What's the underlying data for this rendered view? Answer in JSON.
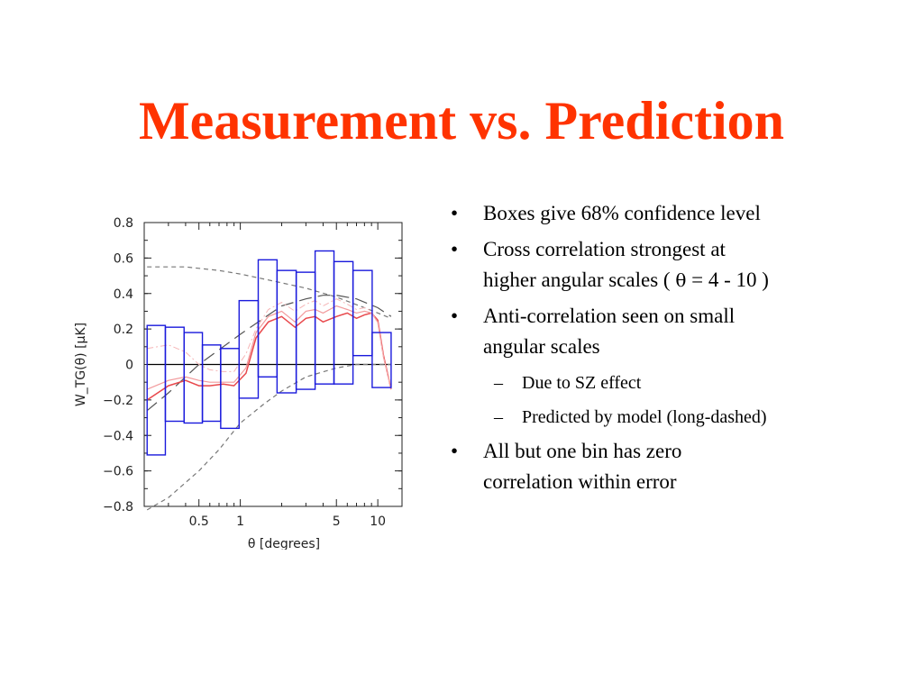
{
  "slide": {
    "title": "Measurement vs. Prediction",
    "title_color": "#ff3300"
  },
  "bullets": [
    {
      "text": "Boxes give 68% confidence level"
    },
    {
      "line1": "Cross correlation strongest at",
      "line2_pre": "higher angular scales ( ",
      "symbol": "θ",
      "line2_post": " = 4 - 10 )"
    },
    {
      "line1": "Anti-correlation seen on small",
      "line2": "angular scales",
      "subs": [
        "Due to SZ effect",
        "Predicted by model (long-dashed)"
      ]
    },
    {
      "line1": "All but one bin has zero",
      "line2": "correlation within error"
    }
  ],
  "chart_data": {
    "type": "box",
    "xlabel": "θ [degrees]",
    "ylabel": "W_TG(θ) [μK]",
    "x_scale": "log",
    "xlim": [
      0.2,
      15
    ],
    "ylim": [
      -0.8,
      0.8
    ],
    "xticks": [
      0.5,
      1,
      5,
      10
    ],
    "yticks": [
      0.8,
      0.6,
      0.4,
      0.2,
      0,
      -0.2,
      -0.4,
      -0.6,
      -0.8
    ],
    "ytick_labels": [
      "0.8",
      "0.6",
      "0.4",
      "0.2",
      "0",
      "−0.2",
      "−0.4",
      "−0.6",
      "−0.8"
    ],
    "box_color": "#1a1adc",
    "boxes": [
      {
        "x0": 0.21,
        "x1": 0.285,
        "low": -0.51,
        "high": 0.22
      },
      {
        "x0": 0.285,
        "x1": 0.39,
        "low": -0.32,
        "high": 0.21
      },
      {
        "x0": 0.39,
        "x1": 0.53,
        "low": -0.33,
        "high": 0.18
      },
      {
        "x0": 0.53,
        "x1": 0.72,
        "low": -0.32,
        "high": 0.11
      },
      {
        "x0": 0.72,
        "x1": 0.98,
        "low": -0.36,
        "high": 0.09
      },
      {
        "x0": 0.98,
        "x1": 1.35,
        "low": -0.19,
        "high": 0.36
      },
      {
        "x0": 1.35,
        "x1": 1.85,
        "low": -0.07,
        "high": 0.59
      },
      {
        "x0": 1.85,
        "x1": 2.55,
        "low": -0.16,
        "high": 0.53
      },
      {
        "x0": 2.55,
        "x1": 3.5,
        "low": -0.14,
        "high": 0.52
      },
      {
        "x0": 3.5,
        "x1": 4.8,
        "low": -0.11,
        "high": 0.64
      },
      {
        "x0": 4.8,
        "x1": 6.6,
        "low": -0.11,
        "high": 0.58
      },
      {
        "x0": 6.6,
        "x1": 9.1,
        "low": 0.05,
        "high": 0.53
      },
      {
        "x0": 9.1,
        "x1": 12.5,
        "low": -0.13,
        "high": 0.18
      }
    ],
    "curves": [
      {
        "style": "long-dashed",
        "color": "#555555",
        "x": [
          0.21,
          0.3,
          0.5,
          1,
          2,
          3,
          4,
          5,
          7,
          10,
          12.5
        ],
        "y": [
          -0.26,
          -0.16,
          0.0,
          0.17,
          0.33,
          0.37,
          0.39,
          0.39,
          0.37,
          0.32,
          0.27
        ]
      },
      {
        "style": "short-dashed",
        "color": "#777777",
        "x": [
          0.21,
          0.4,
          0.7,
          1,
          2,
          3,
          5,
          8,
          12.5
        ],
        "y": [
          0.55,
          0.55,
          0.53,
          0.51,
          0.46,
          0.43,
          0.38,
          0.32,
          0.26
        ]
      },
      {
        "style": "short-dashed",
        "color": "#777777",
        "x": [
          0.21,
          0.3,
          0.5,
          0.7,
          1,
          1.5,
          2,
          3,
          5,
          7,
          10,
          12.5
        ],
        "y": [
          -0.82,
          -0.75,
          -0.6,
          -0.48,
          -0.33,
          -0.22,
          -0.15,
          -0.07,
          -0.02,
          0.0,
          0.0,
          0.0
        ]
      },
      {
        "style": "solid",
        "color": "#e8484c",
        "width": 1.5,
        "x": [
          0.21,
          0.3,
          0.4,
          0.5,
          0.6,
          0.75,
          0.9,
          1.1,
          1.3,
          1.6,
          2,
          2.5,
          3,
          3.5,
          4,
          5,
          6,
          7,
          8,
          9,
          10,
          11,
          12.5
        ],
        "y": [
          -0.2,
          -0.12,
          -0.09,
          -0.12,
          -0.12,
          -0.11,
          -0.12,
          -0.05,
          0.15,
          0.24,
          0.27,
          0.21,
          0.26,
          0.27,
          0.24,
          0.27,
          0.29,
          0.26,
          0.28,
          0.29,
          0.25,
          0.05,
          -0.14
        ]
      },
      {
        "style": "solid",
        "color": "#f29a9c",
        "width": 1.2,
        "x": [
          0.21,
          0.3,
          0.4,
          0.5,
          0.6,
          0.75,
          0.9,
          1.1,
          1.3,
          1.6,
          2,
          2.5,
          3,
          3.5,
          4,
          5,
          6,
          7,
          8,
          9,
          10,
          11,
          12.5
        ],
        "y": [
          -0.14,
          -0.09,
          -0.07,
          -0.09,
          -0.1,
          -0.1,
          -0.1,
          -0.02,
          0.18,
          0.27,
          0.3,
          0.24,
          0.3,
          0.31,
          0.29,
          0.33,
          0.31,
          0.29,
          0.3,
          0.29,
          0.24,
          0.04,
          -0.14
        ]
      },
      {
        "style": "dash-dot",
        "color": "#f5b5b6",
        "width": 1,
        "x": [
          0.21,
          0.3,
          0.4,
          0.5,
          0.6,
          0.75,
          0.9,
          1.1,
          1.3,
          1.6,
          2,
          2.5,
          3,
          3.5,
          4,
          5,
          6,
          7,
          8,
          9,
          10,
          11,
          12.5
        ],
        "y": [
          0.09,
          0.11,
          0.07,
          0.0,
          -0.03,
          -0.04,
          -0.04,
          0.06,
          0.2,
          0.31,
          0.35,
          0.3,
          0.34,
          0.36,
          0.33,
          0.37,
          0.34,
          0.31,
          0.32,
          0.3,
          0.23,
          0.04,
          -0.14
        ]
      }
    ],
    "zero_line": {
      "y": 0,
      "color": "#000000"
    }
  }
}
